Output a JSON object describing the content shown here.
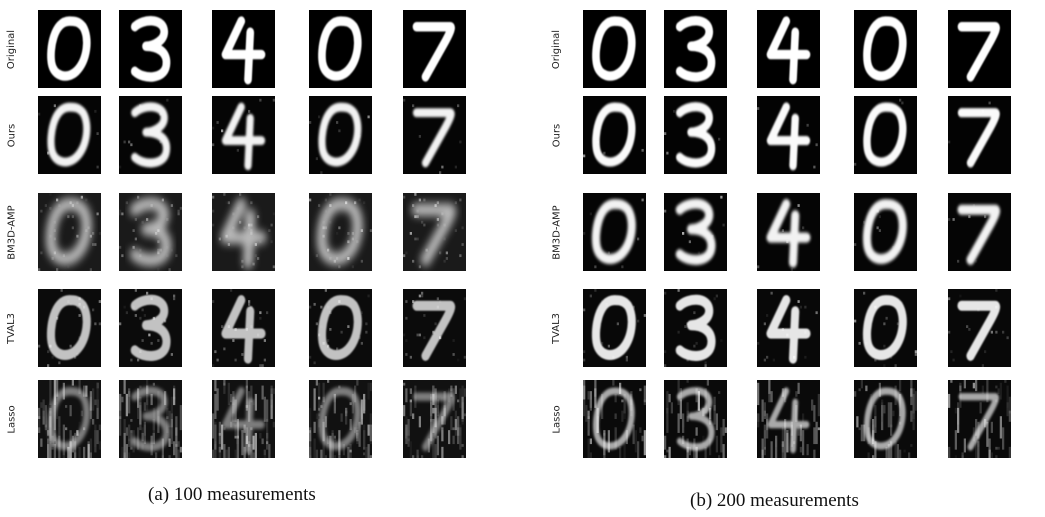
{
  "figure": {
    "rows": [
      {
        "key": "original",
        "label": "Original"
      },
      {
        "key": "ours",
        "label": "Ours"
      },
      {
        "key": "bm3d",
        "label": "BM3D-AMP"
      },
      {
        "key": "tval3",
        "label": "TVAL3"
      },
      {
        "key": "lasso",
        "label": "Lasso"
      }
    ],
    "digits": [
      "0",
      "3",
      "4",
      "0",
      "7"
    ],
    "panels": [
      {
        "caption": "(a) 100 measurements"
      },
      {
        "caption": "(b) 200 measurements"
      }
    ],
    "colors": {
      "tile_background": "#000000",
      "stroke": "#ffffff",
      "text": "#111111"
    }
  }
}
